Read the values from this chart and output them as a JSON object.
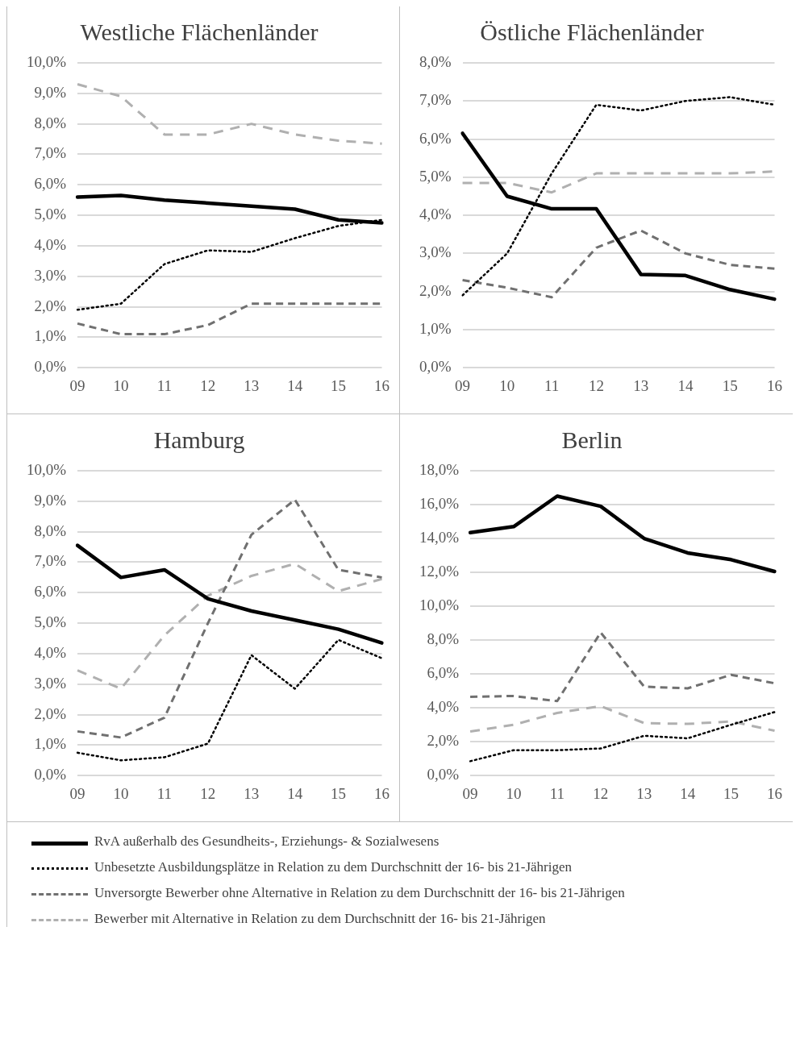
{
  "chart_data": [
    {
      "type": "line",
      "title": "Westliche Flächenländer",
      "categories": [
        "09",
        "10",
        "11",
        "12",
        "13",
        "14",
        "15",
        "16"
      ],
      "ylim": [
        0,
        10
      ],
      "yticks": [
        {
          "value": 0,
          "label": "0,0%"
        },
        {
          "value": 1,
          "label": "1,0%"
        },
        {
          "value": 2,
          "label": "2,0%"
        },
        {
          "value": 3,
          "label": "3,0%"
        },
        {
          "value": 4,
          "label": "4,0%"
        },
        {
          "value": 5,
          "label": "5,0%"
        },
        {
          "value": 6,
          "label": "6,0%"
        },
        {
          "value": 7,
          "label": "7,0%"
        },
        {
          "value": 8,
          "label": "8,0%"
        },
        {
          "value": 9,
          "label": "9,0%"
        },
        {
          "value": 10,
          "label": "10,0%"
        }
      ],
      "grid": "y",
      "legend": "bottom",
      "marker": "none",
      "series": [
        {
          "name": "RvA außerhalb des Gesundheits-, Erziehungs- & Sozialwesens",
          "color": "#000000",
          "line_style": "solid",
          "values": [
            5.6,
            5.65,
            5.5,
            5.4,
            5.3,
            5.2,
            4.85,
            4.75
          ]
        },
        {
          "name": "Unbesetzte Ausbildungsplätze in Relation zu dem Durchschnitt der 16- bis 21-Jährigen",
          "color": "#000000",
          "line_style": "dotted",
          "values": [
            1.9,
            2.1,
            3.4,
            3.85,
            3.8,
            4.25,
            4.65,
            4.85
          ]
        },
        {
          "name": "Unversorgte Bewerber ohne Alternative in Relation zu dem Durchschnitt der 16- bis 21-Jährigen",
          "color": "#707070",
          "line_style": "dashed",
          "values": [
            1.45,
            1.1,
            1.1,
            1.4,
            2.1,
            2.1,
            2.1,
            2.1
          ]
        },
        {
          "name": "Bewerber mit Alternative in Relation zu dem Durchschnitt der 16- bis 21-Jährigen",
          "color": "#b0b0b0",
          "line_style": "dashed",
          "values": [
            9.3,
            8.9,
            7.65,
            7.65,
            8.0,
            7.65,
            7.45,
            7.35
          ]
        }
      ]
    },
    {
      "type": "line",
      "title": "Östliche Flächenländer",
      "categories": [
        "09",
        "10",
        "11",
        "12",
        "13",
        "14",
        "15",
        "16"
      ],
      "ylim": [
        0,
        8
      ],
      "yticks": [
        {
          "value": 0,
          "label": "0,0%"
        },
        {
          "value": 1,
          "label": "1,0%"
        },
        {
          "value": 2,
          "label": "2,0%"
        },
        {
          "value": 3,
          "label": "3,0%"
        },
        {
          "value": 4,
          "label": "4,0%"
        },
        {
          "value": 5,
          "label": "5,0%"
        },
        {
          "value": 6,
          "label": "6,0%"
        },
        {
          "value": 7,
          "label": "7,0%"
        },
        {
          "value": 8,
          "label": "8,0%"
        }
      ],
      "grid": "y",
      "marker": "none",
      "series": [
        {
          "color": "#000000",
          "line_style": "solid",
          "values": [
            6.15,
            4.5,
            4.17,
            4.17,
            2.45,
            2.42,
            2.05,
            1.8
          ]
        },
        {
          "color": "#000000",
          "line_style": "dotted",
          "values": [
            1.9,
            3.0,
            5.1,
            6.9,
            6.75,
            7.0,
            7.1,
            6.9
          ]
        },
        {
          "color": "#707070",
          "line_style": "dashed",
          "values": [
            2.3,
            2.1,
            1.85,
            3.15,
            3.6,
            3.0,
            2.7,
            2.6
          ]
        },
        {
          "color": "#b0b0b0",
          "line_style": "dashed",
          "values": [
            4.85,
            4.85,
            4.6,
            5.1,
            5.1,
            5.1,
            5.1,
            5.15
          ]
        }
      ]
    },
    {
      "type": "line",
      "title": "Hamburg",
      "categories": [
        "09",
        "10",
        "11",
        "12",
        "13",
        "14",
        "15",
        "16"
      ],
      "ylim": [
        0,
        10
      ],
      "yticks": [
        {
          "value": 0,
          "label": "0,0%"
        },
        {
          "value": 1,
          "label": "1,0%"
        },
        {
          "value": 2,
          "label": "2,0%"
        },
        {
          "value": 3,
          "label": "3,0%"
        },
        {
          "value": 4,
          "label": "4,0%"
        },
        {
          "value": 5,
          "label": "5,0%"
        },
        {
          "value": 6,
          "label": "6,0%"
        },
        {
          "value": 7,
          "label": "7,0%"
        },
        {
          "value": 8,
          "label": "8,0%"
        },
        {
          "value": 9,
          "label": "9,0%"
        },
        {
          "value": 10,
          "label": "10,0%"
        }
      ],
      "grid": "y",
      "marker": "none",
      "series": [
        {
          "color": "#000000",
          "line_style": "solid",
          "values": [
            7.55,
            6.5,
            6.75,
            5.8,
            5.4,
            5.1,
            4.8,
            4.35
          ]
        },
        {
          "color": "#000000",
          "line_style": "dotted",
          "values": [
            0.75,
            0.5,
            0.6,
            1.05,
            3.95,
            2.85,
            4.45,
            3.85
          ]
        },
        {
          "color": "#707070",
          "line_style": "dashed",
          "values": [
            1.45,
            1.25,
            1.9,
            5.0,
            7.9,
            9.05,
            6.75,
            6.5
          ]
        },
        {
          "color": "#b0b0b0",
          "line_style": "dashed",
          "values": [
            3.45,
            2.85,
            4.6,
            5.9,
            6.55,
            6.95,
            6.05,
            6.45
          ]
        }
      ]
    },
    {
      "type": "line",
      "title": "Berlin",
      "categories": [
        "09",
        "10",
        "11",
        "12",
        "13",
        "14",
        "15",
        "16"
      ],
      "ylim": [
        0,
        18
      ],
      "yticks": [
        {
          "value": 0,
          "label": "0,0%"
        },
        {
          "value": 2,
          "label": "2,0%"
        },
        {
          "value": 4,
          "label": "4,0%"
        },
        {
          "value": 6,
          "label": "6,0%"
        },
        {
          "value": 8,
          "label": "8,0%"
        },
        {
          "value": 10,
          "label": "10,0%"
        },
        {
          "value": 12,
          "label": "12,0%"
        },
        {
          "value": 14,
          "label": "14,0%"
        },
        {
          "value": 16,
          "label": "16,0%"
        },
        {
          "value": 18,
          "label": "18,0%"
        }
      ],
      "grid": "y",
      "marker": "none",
      "series": [
        {
          "color": "#000000",
          "line_style": "solid",
          "values": [
            14.35,
            14.7,
            16.5,
            15.9,
            14.0,
            13.15,
            12.75,
            12.05
          ]
        },
        {
          "color": "#000000",
          "line_style": "dotted",
          "values": [
            0.85,
            1.5,
            1.5,
            1.6,
            2.35,
            2.2,
            3.0,
            3.75
          ]
        },
        {
          "color": "#707070",
          "line_style": "dashed",
          "values": [
            4.65,
            4.7,
            4.4,
            8.45,
            5.25,
            5.15,
            5.95,
            5.45
          ]
        },
        {
          "color": "#b0b0b0",
          "line_style": "dashed",
          "values": [
            2.6,
            3.0,
            3.7,
            4.1,
            3.1,
            3.05,
            3.2,
            2.65
          ]
        }
      ]
    }
  ]
}
